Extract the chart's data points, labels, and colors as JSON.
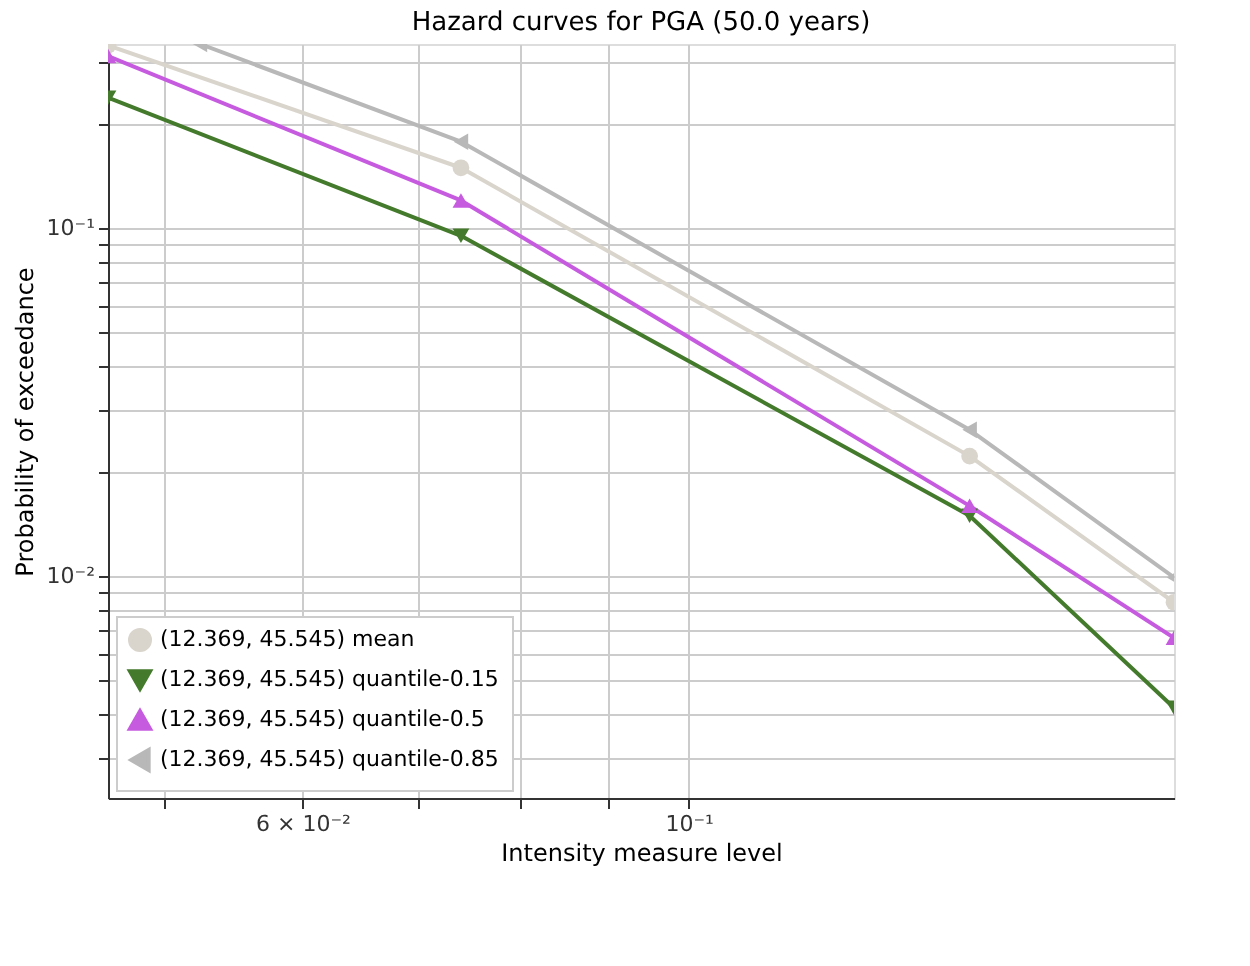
{
  "chart_data": {
    "type": "line",
    "title": "Hazard curves for PGA (50.0 years)",
    "xlabel": "Intensity measure level",
    "ylabel": "Probability of exceedance",
    "log": "xy",
    "grid": true,
    "legend": "bottom left",
    "xlim": [
      0.0464,
      0.19
    ],
    "ylim": [
      0.0023,
      0.338
    ],
    "xticks": [
      {
        "value": 0.05,
        "label": null
      },
      {
        "value": 0.06,
        "label": "6 × 10⁻²"
      },
      {
        "value": 0.07,
        "label": null
      },
      {
        "value": 0.08,
        "label": null
      },
      {
        "value": 0.09,
        "label": null
      },
      {
        "value": 0.1,
        "label": "10⁻¹"
      }
    ],
    "yticks": [
      {
        "value": 0.003,
        "label": null
      },
      {
        "value": 0.004,
        "label": null
      },
      {
        "value": 0.005,
        "label": null
      },
      {
        "value": 0.006,
        "label": null
      },
      {
        "value": 0.007,
        "label": null
      },
      {
        "value": 0.008,
        "label": null
      },
      {
        "value": 0.009,
        "label": null
      },
      {
        "value": 0.01,
        "label": "10⁻²"
      },
      {
        "value": 0.02,
        "label": null
      },
      {
        "value": 0.03,
        "label": null
      },
      {
        "value": 0.04,
        "label": null
      },
      {
        "value": 0.05,
        "label": null
      },
      {
        "value": 0.06,
        "label": null
      },
      {
        "value": 0.07,
        "label": null
      },
      {
        "value": 0.08,
        "label": null
      },
      {
        "value": 0.09,
        "label": null
      },
      {
        "value": 0.1,
        "label": "10⁻¹"
      },
      {
        "value": 0.2,
        "label": null
      },
      {
        "value": 0.3,
        "label": null
      }
    ],
    "series": [
      {
        "name": "(12.369, 45.545) mean",
        "color": "#d9d4cc",
        "marker": "circle",
        "x": [
          0.0464,
          0.074,
          0.145,
          0.19
        ],
        "values": [
          0.335,
          0.149,
          0.0221,
          0.0084
        ]
      },
      {
        "name": "(12.369, 45.545) quantile-0.15",
        "color": "#447a2c",
        "marker": "triangle-down",
        "x": [
          0.0464,
          0.074,
          0.145,
          0.19
        ],
        "values": [
          0.237,
          0.095,
          0.0149,
          0.00418
        ]
      },
      {
        "name": "(12.369, 45.545) quantile-0.5",
        "color": "#c65be0",
        "marker": "triangle",
        "x": [
          0.0464,
          0.074,
          0.145,
          0.19
        ],
        "values": [
          0.312,
          0.12,
          0.0159,
          0.00664
        ]
      },
      {
        "name": "(12.369, 45.545) quantile-0.85",
        "color": "#b8b8b8",
        "marker": "triangle-left",
        "x": [
          0.0524,
          0.074,
          0.145,
          0.19
        ],
        "values": [
          0.338,
          0.177,
          0.0263,
          0.0099
        ]
      }
    ]
  }
}
